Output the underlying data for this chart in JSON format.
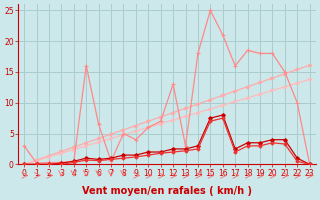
{
  "background_color": "#cce8ea",
  "grid_color": "#aacccc",
  "xlim": [
    -0.5,
    23.5
  ],
  "ylim": [
    0,
    26
  ],
  "yticks": [
    0,
    5,
    10,
    15,
    20,
    25
  ],
  "xticks": [
    0,
    1,
    2,
    3,
    4,
    5,
    6,
    7,
    8,
    9,
    10,
    11,
    12,
    13,
    14,
    15,
    16,
    17,
    18,
    19,
    20,
    21,
    22,
    23
  ],
  "xlabel": "Vent moyen/en rafales ( km/h )",
  "xlabel_color": "#cc0000",
  "xlabel_fontsize": 7,
  "tick_color": "#cc0000",
  "tick_fontsize": 5.5,
  "line1_x": [
    0,
    1,
    2,
    3,
    4,
    5,
    6,
    7,
    8,
    9,
    10,
    11,
    12,
    13,
    14,
    15,
    16,
    17,
    18,
    19,
    20,
    21,
    22,
    23
  ],
  "line1_y": [
    3,
    0.2,
    0.3,
    0.3,
    0.5,
    16,
    6.5,
    0.5,
    5,
    4,
    6,
    7,
    13,
    3,
    18,
    25,
    21,
    16,
    18.5,
    18,
    18,
    15,
    10,
    0
  ],
  "line1_color": "#ff8888",
  "line2_x": [
    0,
    1,
    2,
    3,
    4,
    5,
    6,
    7,
    8,
    9,
    10,
    11,
    12,
    13,
    14,
    15,
    16,
    17,
    18,
    19,
    20,
    21,
    22,
    23
  ],
  "line2_y": [
    0,
    0.7,
    1.4,
    2.1,
    2.8,
    3.5,
    4.2,
    4.9,
    5.6,
    6.3,
    7.0,
    7.7,
    8.4,
    9.1,
    9.8,
    10.5,
    11.2,
    11.9,
    12.6,
    13.3,
    14.0,
    14.7,
    15.4,
    16.1
  ],
  "line2_color": "#ffaaaa",
  "line3_x": [
    0,
    1,
    2,
    3,
    4,
    5,
    6,
    7,
    8,
    9,
    10,
    11,
    12,
    13,
    14,
    15,
    16,
    17,
    18,
    19,
    20,
    21,
    22,
    23
  ],
  "line3_y": [
    0,
    0.6,
    1.2,
    1.8,
    2.4,
    3.0,
    3.6,
    4.2,
    4.8,
    5.4,
    6.0,
    6.6,
    7.2,
    7.8,
    8.4,
    9.0,
    9.6,
    10.2,
    10.8,
    11.4,
    12.0,
    12.6,
    13.2,
    13.8
  ],
  "line3_color": "#ffbbbb",
  "line4_x": [
    0,
    1,
    2,
    3,
    4,
    5,
    6,
    7,
    8,
    9,
    10,
    11,
    12,
    13,
    14,
    15,
    16,
    17,
    18,
    19,
    20,
    21,
    22,
    23
  ],
  "line4_y": [
    0,
    0,
    0,
    0.2,
    0.5,
    1.0,
    0.8,
    1.0,
    1.5,
    1.5,
    2.0,
    2.0,
    2.5,
    2.5,
    3.0,
    7.5,
    8.0,
    2.5,
    3.5,
    3.5,
    4.0,
    4.0,
    1.0,
    0
  ],
  "line4_color": "#cc0000",
  "line5_x": [
    0,
    1,
    2,
    3,
    4,
    5,
    6,
    7,
    8,
    9,
    10,
    11,
    12,
    13,
    14,
    15,
    16,
    17,
    18,
    19,
    20,
    21,
    22,
    23
  ],
  "line5_y": [
    0,
    0,
    0,
    0,
    0.3,
    0.7,
    0.6,
    0.8,
    1.0,
    1.2,
    1.5,
    1.8,
    2.0,
    2.2,
    2.5,
    7.0,
    7.5,
    2.0,
    3.0,
    3.0,
    3.5,
    3.3,
    0.5,
    0
  ],
  "line5_color": "#ee3333",
  "arrow_dirs": [
    "r",
    "r",
    "r",
    "d",
    "d",
    "d",
    "d",
    "d",
    "d",
    "r",
    "r",
    "r",
    "r",
    "r",
    "r",
    "r",
    "r",
    "r",
    "r",
    "r",
    "r",
    "r",
    "r",
    "r"
  ],
  "arrow_color": "#ff6666"
}
